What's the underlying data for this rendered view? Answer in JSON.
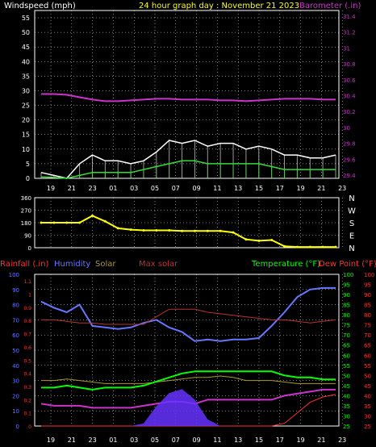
{
  "header": {
    "windspeed_label": "Windspeed (mph)",
    "title": "24 hour graph day : November 21 2023",
    "barometer_label": "Barometer (.in)"
  },
  "legend_row": {
    "rainfall": "Rainfall (.in)",
    "humidity": "Humidity",
    "solar": "Solar",
    "max_solar": "Max solar",
    "temperature": "Temperature (°F)",
    "dew_point": "Dew Point (°F)"
  },
  "colors": {
    "windspeed_label": "#ffffff",
    "title": "#ffff00",
    "barometer": "#cc33cc",
    "grid": "#ffffff",
    "gust": "#ffffff",
    "avg_wind": "#33dd33",
    "direction": "#ffff00",
    "rainfall": "#ff3333",
    "humidity": "#6677ff",
    "solar": "#aa9933",
    "max_solar": "#bb3333",
    "temperature": "#00ff00",
    "dew_point": "#ff3333",
    "humidity_axis": "#6677ff",
    "temp_axis": "#00ff00",
    "dew_axis": "#ff3333"
  },
  "chart_data": [
    {
      "id": "wind_barometer",
      "type": "line",
      "x_tick_labels": [
        "19",
        "21",
        "23",
        "01",
        "03",
        "05",
        "07",
        "09",
        "11",
        "13",
        "15",
        "17",
        "19",
        "21",
        "23"
      ],
      "left_axis": {
        "title": "Windspeed (mph)",
        "ticks": [
          "55",
          "50",
          "45",
          "40",
          "35",
          "30",
          "25",
          "20",
          "15",
          "10",
          "5",
          "0"
        ],
        "ylim": [
          0,
          57.5
        ]
      },
      "right_axis": {
        "title": "Barometer (.in)",
        "ticks": [
          "31.4",
          "31.2",
          "31",
          "30.8",
          "30.6",
          "30.4",
          "30.2",
          "30",
          "29.8",
          "29.6",
          "29.4"
        ],
        "ylim": [
          29.36,
          31.47
        ]
      },
      "series": [
        {
          "name": "Barometer (.in)",
          "axis": "right",
          "color": "#cc33cc",
          "values": [
            30.42,
            30.42,
            30.41,
            30.38,
            30.35,
            30.33,
            30.33,
            30.34,
            30.35,
            30.36,
            30.36,
            30.35,
            30.35,
            30.35,
            30.34,
            30.34,
            30.33,
            30.34,
            30.35,
            30.36,
            30.36,
            30.36,
            30.35,
            30.35
          ]
        },
        {
          "color": "#ffffff",
          "axis": "left",
          "values": [
            2,
            1,
            0,
            5,
            8,
            6,
            6,
            5,
            6,
            9,
            13,
            12,
            13,
            11,
            12,
            12,
            10,
            11,
            10,
            8,
            8,
            7,
            7,
            8
          ]
        },
        {
          "color": "#33dd33",
          "axis": "left",
          "values": [
            0.5,
            0.3,
            0,
            1,
            2,
            2,
            2,
            2,
            3,
            4,
            5,
            6,
            6,
            5,
            5,
            5,
            5,
            5,
            4,
            3,
            3,
            3,
            3,
            3
          ]
        }
      ]
    },
    {
      "id": "wind_direction",
      "type": "scatter",
      "x_tick_labels": [
        "19",
        "21",
        "23",
        "01",
        "03",
        "05",
        "07",
        "09",
        "11",
        "13",
        "15",
        "17",
        "19",
        "21",
        "23"
      ],
      "left_axis": {
        "ticks": [
          "360",
          "270",
          "180",
          "90",
          "0"
        ],
        "ylim": [
          0,
          360
        ]
      },
      "right_axis": {
        "ticks": [
          "N",
          "W",
          "S",
          "E",
          "N"
        ]
      },
      "series": [
        {
          "color": "#ffff00",
          "values": [
            180,
            180,
            180,
            180,
            230,
            190,
            140,
            130,
            125,
            125,
            125,
            120,
            120,
            120,
            120,
            110,
            60,
            50,
            55,
            10,
            5,
            5,
            5,
            5
          ]
        }
      ]
    },
    {
      "id": "temp_humidity_rain_solar",
      "type": "line",
      "x_tick_labels": [
        "19",
        "21",
        "23",
        "01",
        "03",
        "05",
        "07",
        "09",
        "11",
        "13",
        "15",
        "17",
        "19",
        "21",
        "23"
      ],
      "rain_axis": {
        "title": "Rainfall (.in)",
        "ticks": [
          "1.1",
          "1",
          "0.9",
          "0.8",
          "0.7",
          "0.6",
          "0.5",
          "0.4",
          "0.3",
          "0.2",
          "0.1",
          "0"
        ],
        "ylim": [
          0,
          1.15
        ]
      },
      "humidity_axis": {
        "title": "Humidity",
        "ticks": [
          "100",
          "90",
          "80",
          "70",
          "60",
          "50",
          "40",
          "30",
          "20",
          "10",
          "0"
        ],
        "ylim": [
          0,
          100
        ]
      },
      "temp_axis": {
        "title": "Temperature (°F)",
        "ticks": [
          "100",
          "95",
          "90",
          "85",
          "80",
          "75",
          "70",
          "65",
          "60",
          "55",
          "50",
          "45",
          "40",
          "35",
          "30",
          "25"
        ],
        "ylim": [
          25,
          100
        ]
      },
      "dew_axis": {
        "title": "Dew Point (°F)",
        "ticks": [
          "100",
          "95",
          "90",
          "85",
          "80",
          "75",
          "70",
          "65",
          "60",
          "55",
          "50",
          "45",
          "40",
          "35",
          "30",
          "25"
        ],
        "ylim": [
          25,
          100
        ]
      },
      "series": [
        {
          "name": "Humidity",
          "axis": "humidity",
          "color": "#6677ff",
          "values": [
            82,
            78,
            75,
            80,
            66,
            65,
            64,
            65,
            68,
            70,
            65,
            62,
            56,
            57,
            56,
            57,
            57,
            58,
            66,
            75,
            85,
            90,
            91,
            91
          ]
        },
        {
          "name": "Solar",
          "axis": "humidity",
          "color": "#aa9933",
          "values": [
            30,
            30,
            31,
            30,
            29,
            28,
            28,
            28,
            28,
            29,
            30,
            31,
            32,
            32,
            33,
            32,
            30,
            30,
            30,
            29,
            28,
            28,
            28,
            28
          ]
        },
        {
          "name": "Max solar",
          "axis": "humidity",
          "color": "#bb3333",
          "values": [
            70,
            70,
            69,
            68,
            68,
            67,
            67,
            67,
            67,
            72,
            77,
            77,
            77,
            75,
            74,
            73,
            72,
            71,
            70,
            70,
            69,
            68,
            69,
            70
          ]
        },
        {
          "name": "Temperature (°F)",
          "axis": "temp",
          "color": "#00ff00",
          "values": [
            44,
            44,
            45,
            44,
            43,
            44,
            44,
            44,
            45,
            47,
            49,
            51,
            52,
            52,
            52,
            52,
            52,
            52,
            52,
            50,
            49,
            49,
            48,
            48
          ]
        },
        {
          "name": "Dew Point (°F)",
          "axis": "temp",
          "color": "#cc33cc",
          "values": [
            36,
            35,
            35,
            35,
            34,
            34,
            34,
            34,
            35,
            36,
            37,
            37,
            36,
            38,
            38,
            38,
            38,
            38,
            38,
            40,
            41,
            42,
            43,
            43
          ]
        },
        {
          "name": "Rainfall (.in)",
          "axis": "rain",
          "color": "#ff3333",
          "values": [
            0,
            0,
            0,
            0,
            0,
            0,
            0,
            0,
            0,
            0,
            0,
            0,
            0,
            0,
            0,
            0,
            0,
            0,
            0,
            0.02,
            0.1,
            0.18,
            0.22,
            0.24
          ]
        },
        {
          "name": "Solar radiation (area)",
          "axis": "rain",
          "color": "#6633ff",
          "values": [
            0,
            0,
            0,
            0,
            0,
            0,
            0,
            0,
            0.02,
            0.15,
            0.25,
            0.28,
            0.2,
            0.05,
            0,
            0,
            0,
            0,
            0,
            0,
            0,
            0,
            0,
            0
          ]
        }
      ]
    }
  ]
}
